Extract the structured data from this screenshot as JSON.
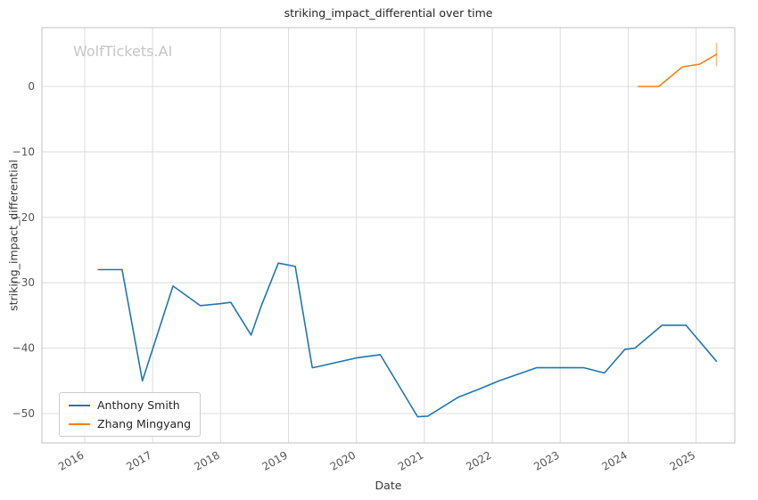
{
  "watermark": "WolfTickets.AI",
  "chart_data": {
    "type": "line",
    "title": "striking_impact_differential over time",
    "xlabel": "Date",
    "ylabel": "striking_impact_differential",
    "xlim": [
      2015.37,
      2025.57
    ],
    "ylim": [
      -54.5,
      9.0
    ],
    "xticks": [
      2016,
      2017,
      2018,
      2019,
      2020,
      2021,
      2022,
      2023,
      2024,
      2025
    ],
    "yticks": [
      0,
      -10,
      -20,
      -30,
      -40,
      -50
    ],
    "grid": true,
    "legend_position": "lower left",
    "grid_color": "#dcdcdc",
    "border_color": "#cccccc",
    "series": [
      {
        "name": "Anthony Smith",
        "color": "#1f77b4",
        "x": [
          2016.2,
          2016.55,
          2016.85,
          2017.3,
          2017.7,
          2018.0,
          2018.15,
          2018.45,
          2018.6,
          2018.85,
          2019.1,
          2019.35,
          2019.45,
          2020.0,
          2020.35,
          2020.9,
          2021.05,
          2021.5,
          2021.8,
          2022.1,
          2022.65,
          2023.1,
          2023.35,
          2023.65,
          2023.95,
          2024.1,
          2024.5,
          2024.85,
          2025.3
        ],
        "y": [
          -28,
          -28,
          -45,
          -30.5,
          -33.5,
          -33.2,
          -33,
          -38,
          -33.5,
          -27,
          -27.5,
          -43,
          -42.8,
          -41.5,
          -41,
          -50.5,
          -50.4,
          -47.5,
          -46.3,
          -45,
          -43,
          -43,
          -43,
          -43.8,
          -40.2,
          -40,
          -36.5,
          -36.5,
          -42
        ]
      },
      {
        "name": "Zhang Mingyang",
        "color": "#ff7f0e",
        "x": [
          2024.15,
          2024.45,
          2024.8,
          2025.05,
          2025.3
        ],
        "y": [
          0,
          0,
          3.0,
          3.4,
          4.9
        ]
      }
    ],
    "error_bar": {
      "x": 2025.3,
      "y_low": 3.1,
      "y_high": 6.7,
      "color": "#fdbe85"
    }
  }
}
